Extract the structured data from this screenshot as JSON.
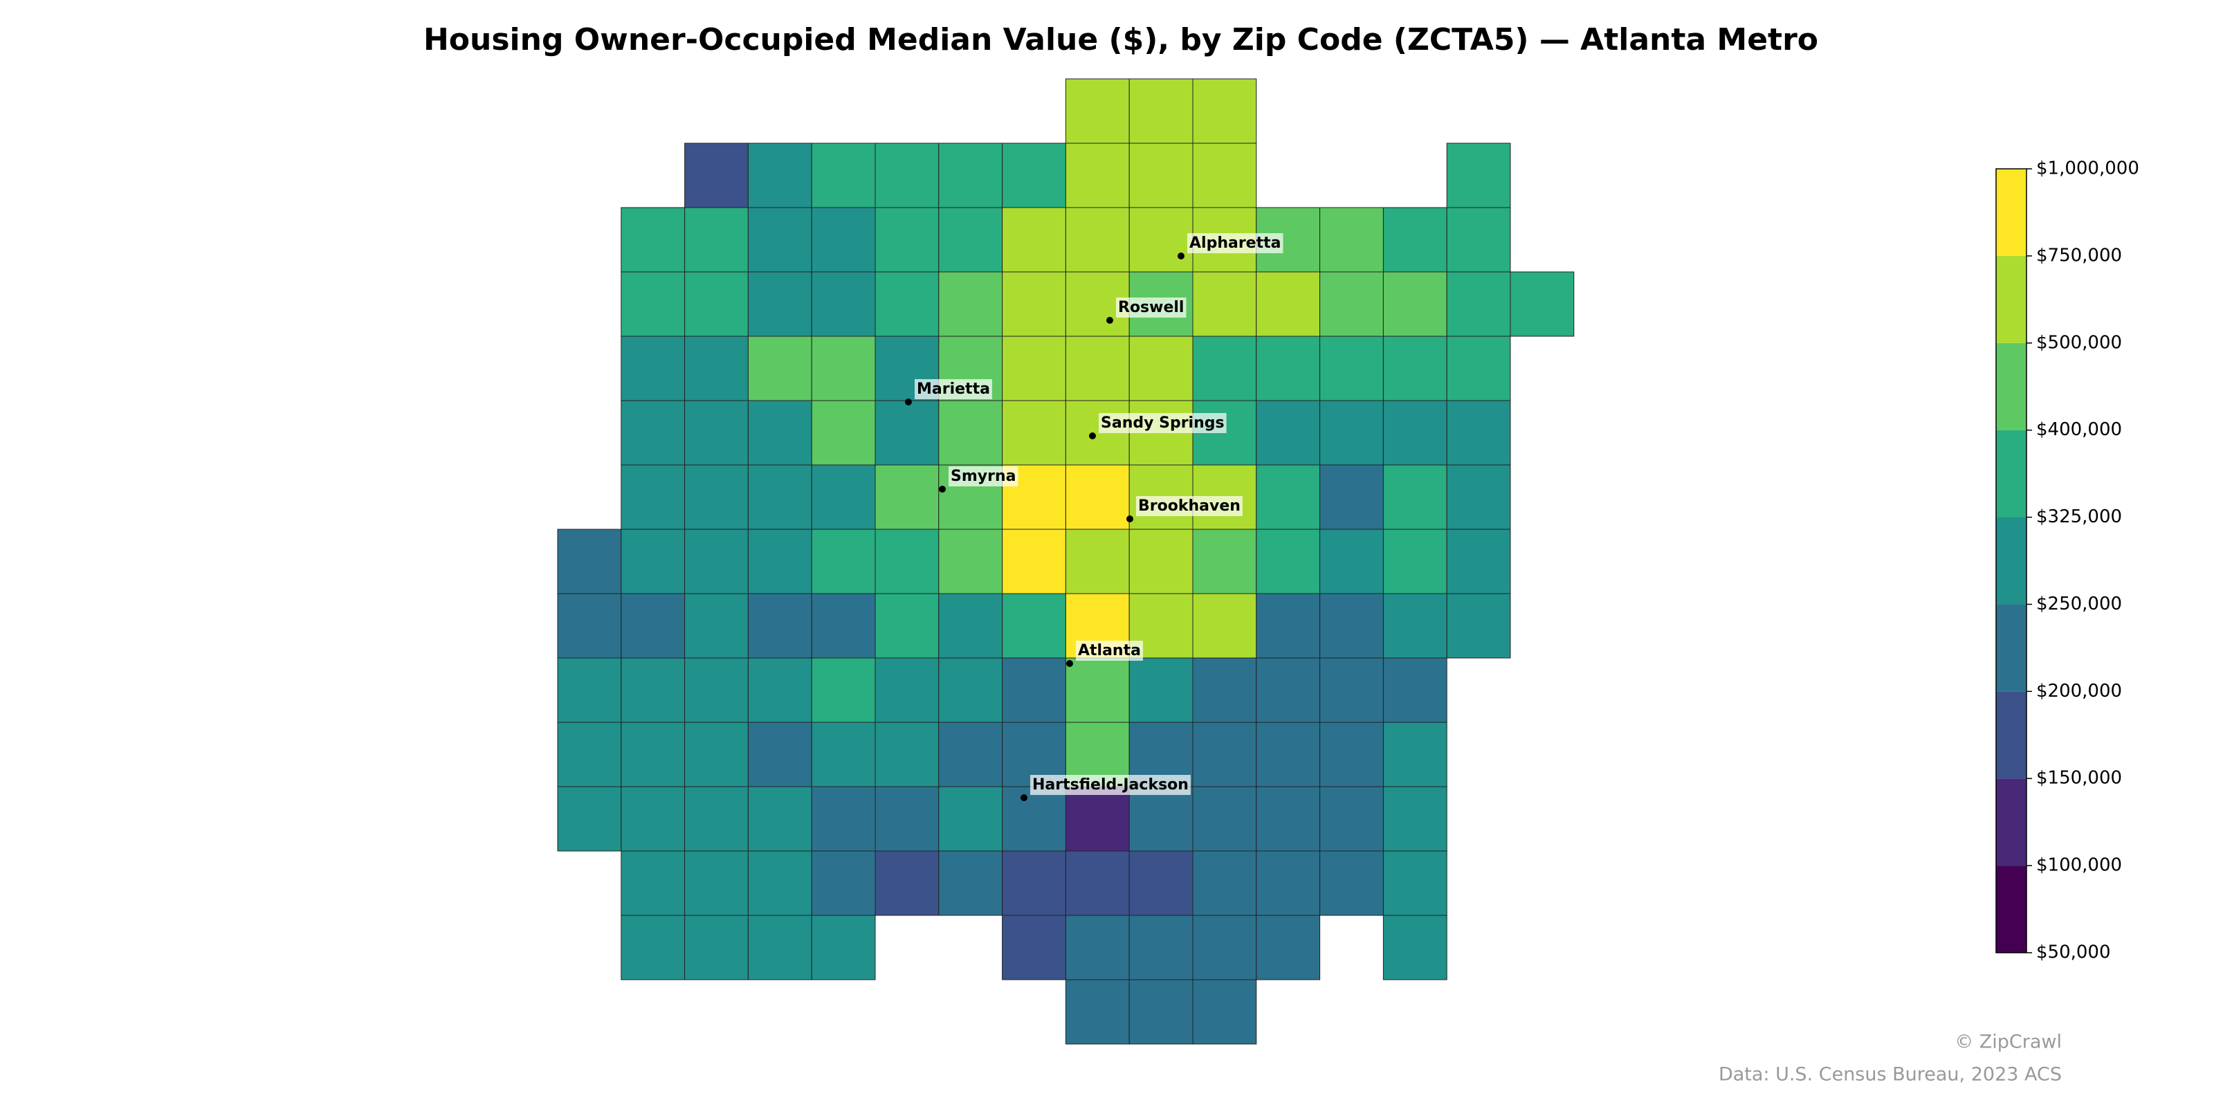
{
  "chart_data": {
    "type": "choropleth",
    "title": "Housing Owner-Occupied Median Value ($), by Zip Code (ZCTA5) — Atlanta Metro",
    "grid_values": [
      [
        null,
        null,
        null,
        null,
        null,
        null,
        null,
        null,
        600000,
        600000,
        600000,
        null,
        null,
        null,
        null,
        null
      ],
      [
        null,
        null,
        180000,
        280000,
        360000,
        360000,
        360000,
        360000,
        600000,
        600000,
        600000,
        null,
        null,
        null,
        360000,
        null
      ],
      [
        null,
        360000,
        360000,
        280000,
        280000,
        360000,
        360000,
        600000,
        600000,
        600000,
        600000,
        450000,
        450000,
        360000,
        360000,
        null
      ],
      [
        null,
        360000,
        360000,
        280000,
        280000,
        360000,
        450000,
        600000,
        600000,
        450000,
        600000,
        600000,
        450000,
        450000,
        360000,
        360000
      ],
      [
        null,
        280000,
        280000,
        450000,
        450000,
        280000,
        450000,
        600000,
        600000,
        600000,
        360000,
        360000,
        360000,
        360000,
        360000,
        null
      ],
      [
        null,
        280000,
        280000,
        280000,
        450000,
        280000,
        450000,
        600000,
        600000,
        600000,
        360000,
        280000,
        280000,
        280000,
        280000,
        null
      ],
      [
        null,
        280000,
        280000,
        280000,
        280000,
        450000,
        450000,
        850000,
        850000,
        600000,
        600000,
        360000,
        230000,
        360000,
        280000,
        null
      ],
      [
        230000,
        280000,
        280000,
        280000,
        360000,
        360000,
        450000,
        850000,
        600000,
        600000,
        450000,
        360000,
        280000,
        360000,
        280000,
        null
      ],
      [
        230000,
        230000,
        280000,
        230000,
        230000,
        360000,
        280000,
        360000,
        850000,
        600000,
        600000,
        230000,
        230000,
        280000,
        280000,
        null
      ],
      [
        280000,
        280000,
        280000,
        280000,
        360000,
        280000,
        280000,
        230000,
        450000,
        280000,
        230000,
        230000,
        230000,
        230000,
        null,
        null
      ],
      [
        280000,
        280000,
        280000,
        230000,
        280000,
        280000,
        230000,
        230000,
        450000,
        230000,
        230000,
        230000,
        230000,
        280000,
        null,
        null
      ],
      [
        280000,
        280000,
        280000,
        280000,
        230000,
        230000,
        280000,
        230000,
        130000,
        230000,
        230000,
        230000,
        230000,
        280000,
        null,
        null
      ],
      [
        null,
        280000,
        280000,
        280000,
        230000,
        180000,
        230000,
        180000,
        180000,
        180000,
        230000,
        230000,
        230000,
        280000,
        null,
        null
      ],
      [
        null,
        280000,
        280000,
        280000,
        280000,
        null,
        null,
        180000,
        230000,
        230000,
        230000,
        230000,
        null,
        280000,
        null,
        null
      ],
      [
        null,
        null,
        null,
        null,
        null,
        null,
        null,
        null,
        230000,
        230000,
        230000,
        null,
        null,
        null,
        null,
        null
      ]
    ],
    "places": [
      "Alpharetta",
      "Roswell",
      "Marietta",
      "Sandy Springs",
      "Smyrna",
      "Brookhaven",
      "Atlanta",
      "Hartsfield-Jackson"
    ],
    "ylim": [
      50000,
      1000000
    ],
    "yticks": [
      {
        "value": 50000,
        "label": "$50,000"
      },
      {
        "value": 100000,
        "label": "$100,000"
      },
      {
        "value": 150000,
        "label": "$150,000"
      },
      {
        "value": 200000,
        "label": "$200,000"
      },
      {
        "value": 250000,
        "label": "$250,000"
      },
      {
        "value": 325000,
        "label": "$325,000"
      },
      {
        "value": 400000,
        "label": "$400,000"
      },
      {
        "value": 500000,
        "label": "$500,000"
      },
      {
        "value": 750000,
        "label": "$750,000"
      },
      {
        "value": 1000000,
        "label": "$1,000,000"
      }
    ],
    "colors": [
      "#440154",
      "#482878",
      "#3b528b",
      "#2c728e",
      "#21918c",
      "#28ae80",
      "#5ec962",
      "#addc30",
      "#fde725"
    ],
    "credit": "© ZipCrawl",
    "source": "Data: U.S. Census Bureau, 2023 ACS"
  }
}
